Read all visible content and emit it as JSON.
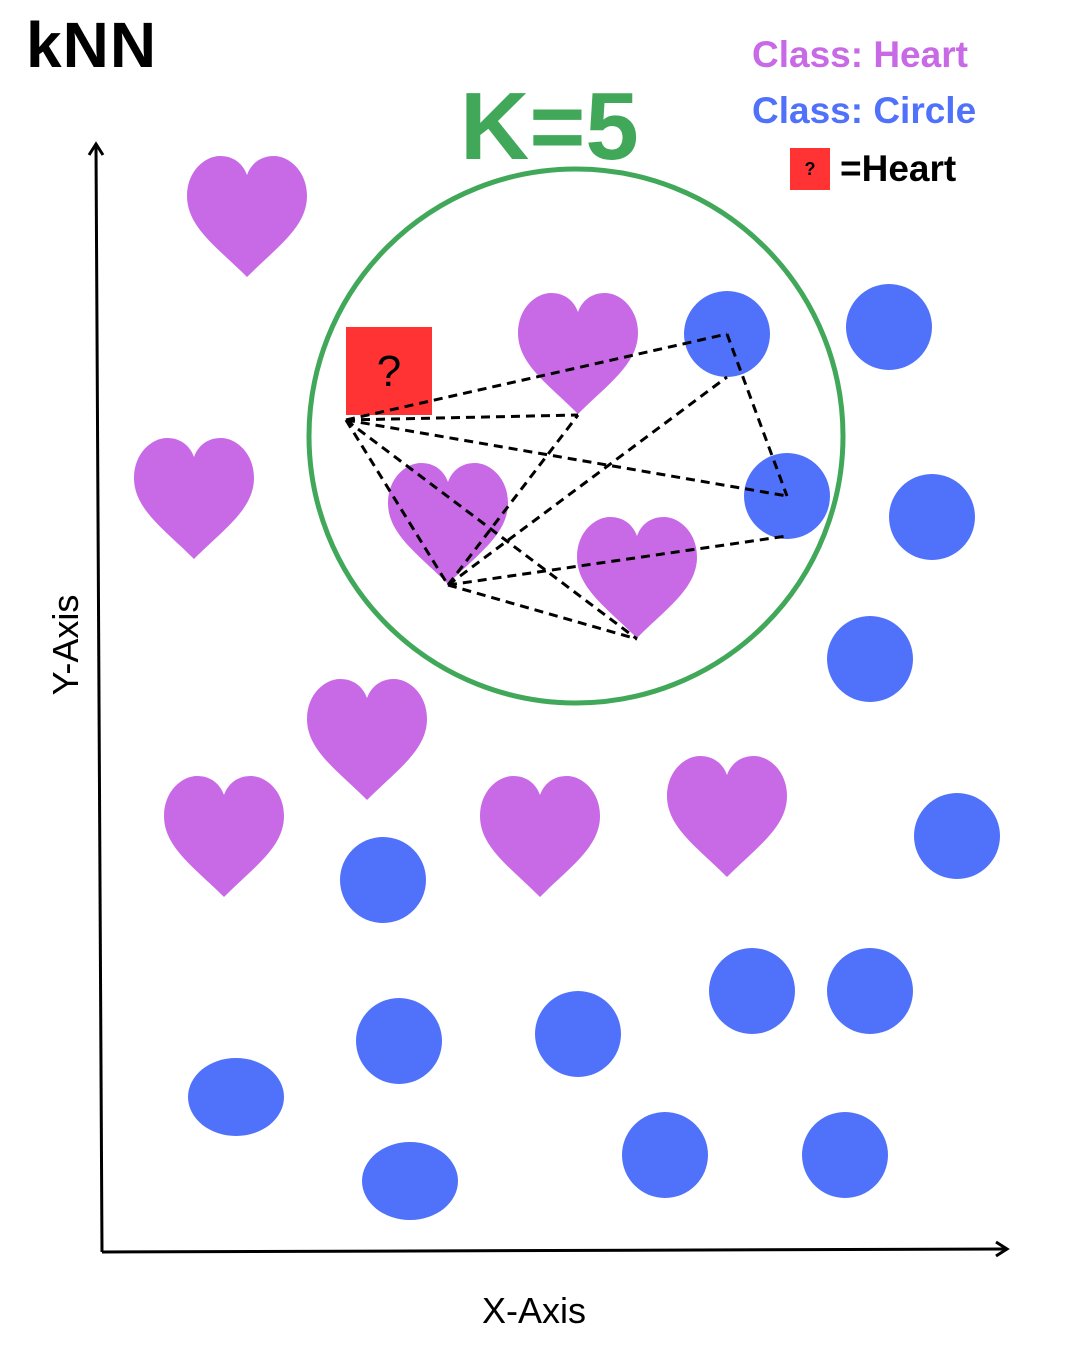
{
  "title": "kNN",
  "k_label": "K=5",
  "legend": {
    "heart_label": "Class: Heart",
    "circle_label": "Class: Circle",
    "query_symbol": "?",
    "query_result": "=Heart"
  },
  "axes": {
    "x_label": "X-Axis",
    "y_label": "Y-Axis"
  },
  "query_point": {
    "symbol": "?"
  },
  "colors": {
    "heart": "#c86ae6",
    "circle": "#5072fb",
    "query": "#ff3333",
    "neighborhood": "#41a85a",
    "text": "#000000"
  }
}
